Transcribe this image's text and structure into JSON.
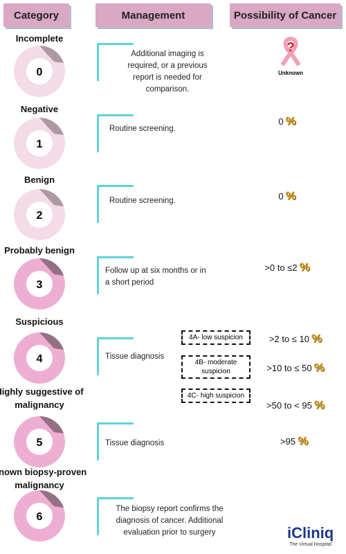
{
  "header": {
    "category": "Category",
    "management": "Management",
    "possibility": "Possibility of Cancer"
  },
  "percent_symbol": "%",
  "unknown_mark": "?",
  "unknown_label": "Unknown",
  "rows": [
    {
      "category": "Incomplete",
      "number": "0",
      "management": "Additional imaging is required, or a previous report is needed for comparison."
    },
    {
      "category": "Negative",
      "number": "1",
      "management": "Routine screening.",
      "possibility": "0"
    },
    {
      "category": "Benign",
      "number": "2",
      "management": "Routine screening.",
      "possibility": "0"
    },
    {
      "category": "Probably benign",
      "number": "3",
      "management": "Follow up at six months or in a short period",
      "possibility": ">0 to ≤2"
    },
    {
      "category": "Suspicious",
      "number": "4",
      "management": "Tissue diagnosis",
      "subcategories": [
        {
          "label": "4A- low suspicion",
          "possibility": ">2 to ≤ 10"
        },
        {
          "label": "4B- moderate suspicion",
          "possibility": ">10 to ≤ 50"
        },
        {
          "label": "4C- high suspicion",
          "possibility": ">50 to < 95"
        }
      ]
    },
    {
      "category": "Highly suggestive of malignancy",
      "number": "5",
      "management": "Tissue diagnosis",
      "possibility": ">95"
    },
    {
      "category": "Known biopsy-proven malignancy",
      "number": "6",
      "management": "The biopsy report confirms the diagnosis of cancer. Additional evaluation prior to surgery"
    }
  ],
  "logo": {
    "name": "iCliniq",
    "tagline": "The Virtual Hospital"
  }
}
